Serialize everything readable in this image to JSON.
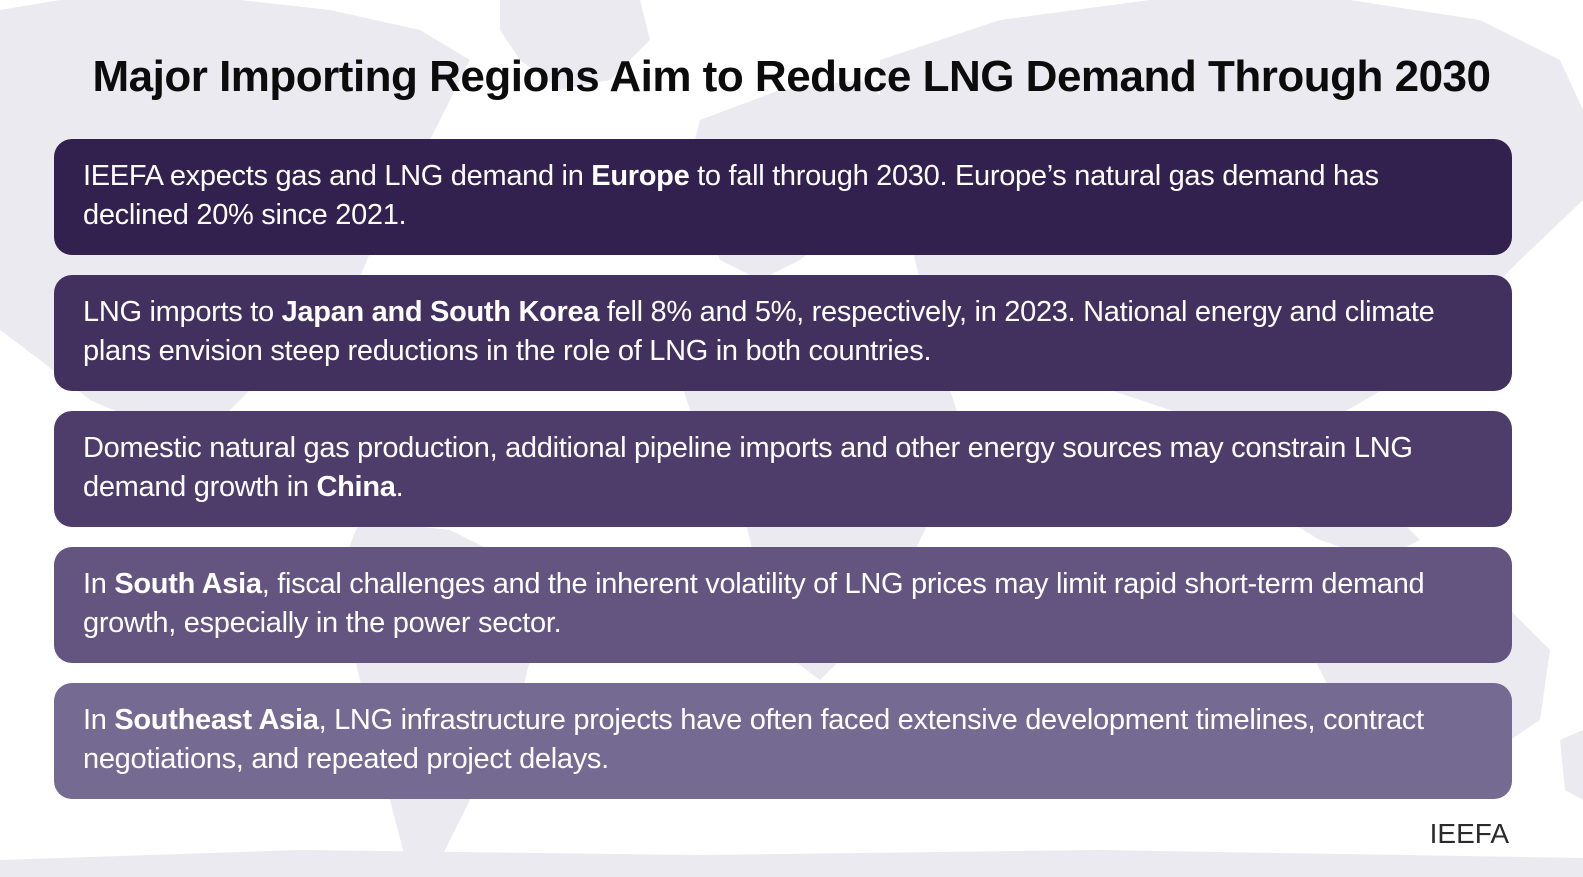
{
  "title": "Major Importing Regions Aim to Reduce LNG Demand Through 2030",
  "cards": [
    {
      "before": "IEEFA expects gas and LNG demand in ",
      "bold": "Europe",
      "after": " to fall through 2030. Europe’s natural gas demand has declined 20% since 2021.",
      "color": "#32204f"
    },
    {
      "before": "LNG imports to ",
      "bold": "Japan and South Korea",
      "after": " fell 8% and 5%, respectively, in 2023. National energy and climate plans envision steep reductions in the role of LNG in both countries.",
      "color": "#42305f"
    },
    {
      "before": "Domestic natural gas production, additional pipeline imports and other energy sources may constrain LNG demand growth in ",
      "bold": "China",
      "after": ".",
      "color": "#4e3d6b"
    },
    {
      "before": "In ",
      "bold": "South Asia",
      "after": ", fiscal challenges and the inherent volatility of LNG prices may limit rapid short-term demand growth, especially in the power sector.",
      "color": "#635480"
    },
    {
      "before": "In ",
      "bold": "Southeast Asia",
      "after": ", LNG infrastructure projects have often faced extensive development timelines, contract negotiations, and repeated project delays.",
      "color": "#756a91"
    }
  ],
  "source": "IEEFA",
  "colors": {
    "map": "#ebeaf0",
    "title": "#0c0c0c"
  }
}
